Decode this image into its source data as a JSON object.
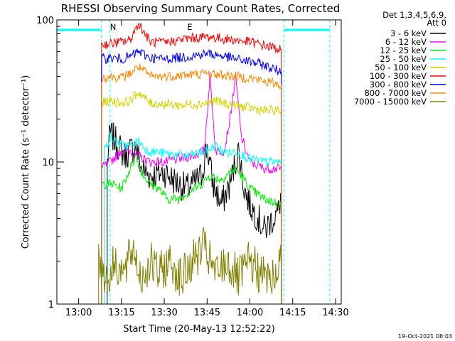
{
  "chart_data": {
    "type": "line",
    "title": "RHESSI Observing Summary Count Rates, Corrected",
    "xlabel": "Start Time (20-May-13 12:52:22)",
    "ylabel": "Corrected Count Rate (s⁻¹ detector⁻¹)",
    "y_scale": "log",
    "ylim": [
      1,
      100
    ],
    "xlim": [
      "12:52:22",
      "14:32"
    ],
    "x_ticks": [
      "13:00",
      "13:15",
      "13:30",
      "13:45",
      "14:00",
      "14:15",
      "14:30"
    ],
    "y_ticks": [
      "1",
      "10",
      "100"
    ],
    "grid": false,
    "legend_header": [
      "Det 1,3,4,5,6,9,",
      "Att 0"
    ],
    "legend_position": "right",
    "footer_date": "19-Oct-2021 08:03",
    "annotations": [
      {
        "text": "N",
        "time": "13:11"
      },
      {
        "text": "E",
        "time": "13:38"
      }
    ],
    "night_markers": [
      "13:08",
      "13:11",
      "14:12",
      "14:28"
    ],
    "attenuator_bar": {
      "level": 85,
      "segments": [
        [
          "12:52:22",
          "13:08"
        ],
        [
          "14:12",
          "14:28"
        ]
      ]
    },
    "series": [
      {
        "name": "3 - 6 keV",
        "color": "#000000",
        "x": [
          "13:10",
          "13:11",
          "13:12",
          "13:14",
          "13:16",
          "13:18",
          "13:20",
          "13:22",
          "13:25",
          "13:30",
          "13:35",
          "13:38",
          "13:40",
          "13:43",
          "13:45",
          "13:47",
          "13:50",
          "13:53",
          "13:56",
          "13:58",
          "14:00",
          "14:03",
          "14:05",
          "14:08",
          "14:10",
          "14:11"
        ],
        "values": [
          10,
          16,
          15,
          13,
          11,
          12,
          13,
          9,
          8,
          8.5,
          7,
          6.5,
          7,
          8,
          13,
          7,
          5,
          7,
          12,
          6.5,
          5,
          4,
          3.3,
          4,
          4.5,
          6
        ]
      },
      {
        "name": "6 - 12 keV",
        "color": "#ff00ff",
        "x": [
          "13:08",
          "13:11",
          "13:15",
          "13:18",
          "13:21",
          "13:25",
          "13:30",
          "13:35",
          "13:40",
          "13:44",
          "13:46",
          "13:48",
          "13:51",
          "13:53",
          "13:55",
          "13:57",
          "14:00",
          "14:05",
          "14:11"
        ],
        "values": [
          9,
          10,
          12,
          12,
          11,
          10,
          10,
          10.5,
          11,
          12,
          40,
          12,
          12,
          20,
          40,
          15,
          10,
          9,
          9
        ]
      },
      {
        "name": "12 - 25 keV",
        "color": "#00ee00",
        "x": [
          "13:08",
          "13:12",
          "13:15",
          "13:18",
          "13:20",
          "13:22",
          "13:25",
          "13:28",
          "13:31",
          "13:35",
          "13:38",
          "13:43",
          "13:46",
          "13:50",
          "13:53",
          "13:55",
          "13:58",
          "14:00",
          "14:05",
          "14:11"
        ],
        "values": [
          7,
          7,
          6.5,
          9,
          11,
          8.5,
          7,
          6.5,
          5.5,
          5.5,
          6,
          7,
          8,
          7.5,
          8.5,
          9,
          7.5,
          6.5,
          5.5,
          5
        ]
      },
      {
        "name": "25 - 50 keV",
        "color": "#00ffff",
        "x": [
          "13:09",
          "13:11",
          "13:13",
          "13:15",
          "13:18",
          "13:21",
          "13:24",
          "13:30",
          "13:38",
          "13:45",
          "13:48",
          "13:50",
          "13:53",
          "13:55",
          "13:58",
          "14:00",
          "14:05",
          "14:11"
        ],
        "values": [
          12,
          15,
          14,
          13,
          13,
          14,
          12,
          11.5,
          11,
          12,
          13,
          12,
          11.5,
          12,
          11,
          10.5,
          10,
          10
        ]
      },
      {
        "name": "50 - 100 keV",
        "color": "#d4d400",
        "x": [
          "13:08",
          "13:11",
          "13:15",
          "13:18",
          "13:21",
          "13:25",
          "13:30",
          "13:35",
          "13:40",
          "13:45",
          "13:48",
          "13:50",
          "13:55",
          "14:00",
          "14:05",
          "14:11"
        ],
        "values": [
          26,
          27,
          26,
          27,
          31,
          26,
          25.5,
          25,
          25.5,
          26,
          27,
          26,
          25,
          24,
          23,
          23
        ]
      },
      {
        "name": "100 - 300 keV",
        "color": "#ff0000",
        "x": [
          "13:08",
          "13:11",
          "13:15",
          "13:18",
          "13:21",
          "13:25",
          "13:30",
          "13:38",
          "13:45",
          "13:50",
          "13:55",
          "14:00",
          "14:05",
          "14:11"
        ],
        "values": [
          67,
          68,
          70,
          72,
          95,
          70,
          69,
          74,
          76,
          74,
          72,
          70,
          66,
          62
        ]
      },
      {
        "name": "300 - 800 keV",
        "color": "#0000ff",
        "x": [
          "13:08",
          "13:11",
          "13:15",
          "13:18",
          "13:21",
          "13:25",
          "13:30",
          "13:38",
          "13:45",
          "13:50",
          "13:55",
          "14:00",
          "14:05",
          "14:11"
        ],
        "values": [
          53,
          54,
          53,
          55,
          60,
          54,
          53,
          55,
          58,
          56,
          53,
          51,
          48,
          43
        ]
      },
      {
        "name": "800 - 7000 keV",
        "color": "#ff8800",
        "x": [
          "13:08",
          "13:11",
          "13:15",
          "13:18",
          "13:21",
          "13:25",
          "13:30",
          "13:38",
          "13:45",
          "13:50",
          "13:55",
          "14:00",
          "14:05",
          "14:11"
        ],
        "values": [
          39,
          40,
          39,
          42,
          47,
          40,
          40,
          41,
          42,
          41,
          40,
          39,
          37,
          35
        ]
      },
      {
        "name": "7000 - 15000 keV",
        "color": "#808000",
        "x": [
          "13:07",
          "13:10",
          "13:13",
          "13:16",
          "13:19",
          "13:22",
          "13:25",
          "13:28",
          "13:32",
          "13:36",
          "13:40",
          "13:44",
          "13:48",
          "13:52",
          "13:56",
          "14:00",
          "14:04",
          "14:08",
          "14:11"
        ],
        "values": [
          2,
          1.5,
          2,
          1.6,
          2.5,
          1.5,
          2,
          1.6,
          2,
          1.5,
          2,
          2.5,
          1.6,
          2,
          1.5,
          2,
          1.6,
          1.5,
          2
        ]
      }
    ]
  }
}
